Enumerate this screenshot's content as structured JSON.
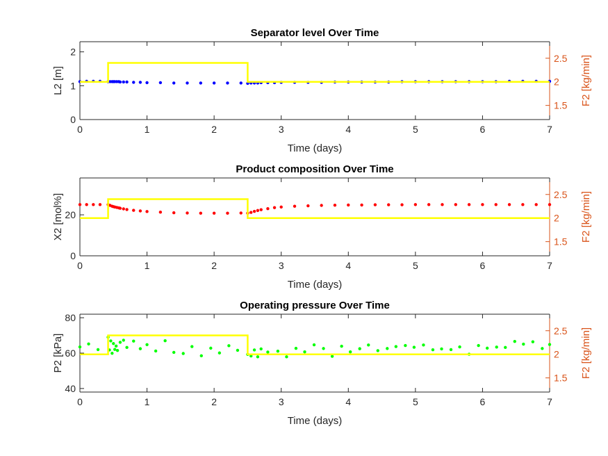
{
  "chart_data": [
    {
      "type": "scatter",
      "title": "Separator level Over Time",
      "xlabel": "Time (days)",
      "ylabel": "L2 [m]",
      "ylabel_right": "F2 [kg/min]",
      "xlim": [
        0,
        7
      ],
      "ylim": [
        0,
        2.3
      ],
      "ylim_right": [
        1.2,
        2.85
      ],
      "xticks": [
        "0",
        "1",
        "2",
        "3",
        "4",
        "5",
        "6",
        "7"
      ],
      "yticks": [
        "0",
        "1",
        "2"
      ],
      "yticks_right": [
        "1.5",
        "2",
        "2.5"
      ],
      "colors": {
        "marker": "#0000FF",
        "step": "#FFFF00",
        "right_axis": "#D95319"
      },
      "series": [
        {
          "axis": "left",
          "style": "dots",
          "x": [
            0.0,
            0.1,
            0.2,
            0.3,
            0.42,
            0.45,
            0.48,
            0.5,
            0.52,
            0.55,
            0.58,
            0.6,
            0.65,
            0.7,
            0.8,
            0.9,
            1.0,
            1.2,
            1.4,
            1.6,
            1.8,
            2.0,
            2.2,
            2.4,
            2.5,
            2.55,
            2.6,
            2.65,
            2.7,
            2.8,
            2.9,
            3.0,
            3.2,
            3.4,
            3.6,
            3.8,
            4.0,
            4.2,
            4.4,
            4.6,
            4.8,
            5.0,
            5.2,
            5.4,
            5.6,
            5.8,
            6.0,
            6.2,
            6.4,
            6.6,
            6.8,
            7.0
          ],
          "values": [
            1.12,
            1.13,
            1.13,
            1.13,
            1.12,
            1.12,
            1.12,
            1.12,
            1.12,
            1.12,
            1.12,
            1.11,
            1.11,
            1.11,
            1.1,
            1.1,
            1.09,
            1.09,
            1.08,
            1.08,
            1.08,
            1.08,
            1.08,
            1.08,
            1.07,
            1.08,
            1.08,
            1.08,
            1.09,
            1.09,
            1.09,
            1.1,
            1.1,
            1.1,
            1.1,
            1.11,
            1.11,
            1.11,
            1.11,
            1.11,
            1.12,
            1.12,
            1.12,
            1.12,
            1.12,
            1.12,
            1.12,
            1.12,
            1.13,
            1.13,
            1.13,
            1.13
          ]
        },
        {
          "axis": "right",
          "style": "step",
          "x": [
            0,
            0.42,
            0.42,
            2.5,
            2.5,
            7
          ],
          "values": [
            2.0,
            2.0,
            2.4,
            2.4,
            2.0,
            2.0
          ]
        }
      ]
    },
    {
      "type": "scatter",
      "title": "Product composition Over Time",
      "xlabel": "Time (days)",
      "ylabel": "X2 [mol%]",
      "ylabel_right": "F2 [kg/min]",
      "xlim": [
        0,
        7
      ],
      "ylim": [
        0,
        38
      ],
      "ylim_right": [
        1.2,
        2.85
      ],
      "xticks": [
        "0",
        "1",
        "2",
        "3",
        "4",
        "5",
        "6",
        "7"
      ],
      "yticks": [
        "0",
        "20"
      ],
      "yticks_right": [
        "1.5",
        "2",
        "2.5"
      ],
      "colors": {
        "marker": "#FF0000",
        "step": "#FFFF00",
        "right_axis": "#D95319"
      },
      "series": [
        {
          "axis": "left",
          "style": "dots",
          "x": [
            0.0,
            0.1,
            0.2,
            0.3,
            0.42,
            0.45,
            0.48,
            0.5,
            0.52,
            0.55,
            0.58,
            0.6,
            0.65,
            0.7,
            0.8,
            0.9,
            1.0,
            1.2,
            1.4,
            1.6,
            1.8,
            2.0,
            2.2,
            2.4,
            2.5,
            2.55,
            2.6,
            2.65,
            2.7,
            2.8,
            2.9,
            3.0,
            3.2,
            3.4,
            3.6,
            3.8,
            4.0,
            4.2,
            4.4,
            4.6,
            4.8,
            5.0,
            5.2,
            5.4,
            5.6,
            5.8,
            6.0,
            6.2,
            6.4,
            6.6,
            6.8,
            7.0
          ],
          "values": [
            25.0,
            25.0,
            25.0,
            25.0,
            25.0,
            24.6,
            24.2,
            24.0,
            23.8,
            23.6,
            23.4,
            23.2,
            22.9,
            22.6,
            22.2,
            21.9,
            21.6,
            21.3,
            21.0,
            20.9,
            20.8,
            20.8,
            20.8,
            20.9,
            20.8,
            21.2,
            21.7,
            22.1,
            22.5,
            23.0,
            23.5,
            23.8,
            24.2,
            24.4,
            24.6,
            24.7,
            24.8,
            24.8,
            24.9,
            24.9,
            24.9,
            25.0,
            25.0,
            25.0,
            25.0,
            25.0,
            25.0,
            25.0,
            25.0,
            25.0,
            25.0,
            25.0
          ]
        },
        {
          "axis": "right",
          "style": "step",
          "x": [
            0,
            0.42,
            0.42,
            2.5,
            2.5,
            7
          ],
          "values": [
            2.0,
            2.0,
            2.4,
            2.4,
            2.0,
            2.0
          ]
        }
      ]
    },
    {
      "type": "scatter",
      "title": "Operating pressure Over Time",
      "xlabel": "Time (days)",
      "ylabel": "P2 [kPa]",
      "ylabel_right": "F2 [kg/min]",
      "xlim": [
        0,
        7
      ],
      "ylim": [
        38,
        82
      ],
      "ylim_right": [
        1.2,
        2.85
      ],
      "xticks": [
        "0",
        "1",
        "2",
        "3",
        "4",
        "5",
        "6",
        "7"
      ],
      "yticks": [
        "40",
        "60",
        "80"
      ],
      "yticks_right": [
        "1.5",
        "2",
        "2.5"
      ],
      "colors": {
        "marker": "#00FF00",
        "step": "#FFFF00",
        "right_axis": "#D95319"
      },
      "series": [
        {
          "axis": "left",
          "style": "dots",
          "x": [
            0.0,
            0.13,
            0.27,
            0.42,
            0.44,
            0.46,
            0.48,
            0.5,
            0.52,
            0.54,
            0.56,
            0.6,
            0.65,
            0.7,
            0.8,
            0.9,
            1.0,
            1.13,
            1.27,
            1.4,
            1.54,
            1.67,
            1.81,
            1.95,
            2.08,
            2.22,
            2.35,
            2.5,
            2.55,
            2.6,
            2.65,
            2.7,
            2.8,
            2.95,
            3.08,
            3.22,
            3.35,
            3.49,
            3.63,
            3.76,
            3.9,
            4.03,
            4.17,
            4.3,
            4.44,
            4.58,
            4.71,
            4.85,
            4.98,
            5.12,
            5.26,
            5.39,
            5.53,
            5.66,
            5.8,
            5.94,
            6.07,
            6.21,
            6.34,
            6.48,
            6.61,
            6.75,
            6.89,
            7.0
          ],
          "values": [
            63.5,
            65.2,
            62.0,
            69.0,
            61.8,
            66.9,
            59.9,
            65.4,
            62.1,
            64.0,
            61.5,
            66.1,
            67.3,
            63.2,
            66.8,
            62.5,
            64.8,
            61.2,
            67.0,
            60.4,
            59.8,
            63.7,
            58.5,
            62.8,
            60.1,
            64.2,
            61.6,
            59.3,
            58.4,
            61.8,
            57.9,
            62.4,
            60.6,
            61.1,
            57.9,
            62.7,
            60.7,
            64.7,
            62.6,
            58.2,
            63.9,
            60.7,
            62.5,
            64.6,
            61.4,
            62.6,
            63.7,
            64.3,
            63.3,
            64.6,
            61.9,
            62.4,
            62.0,
            63.5,
            59.4,
            64.3,
            62.8,
            63.4,
            63.2,
            66.6,
            65.1,
            66.4,
            62.6,
            64.9
          ]
        },
        {
          "axis": "right",
          "style": "step",
          "x": [
            0,
            0.42,
            0.42,
            2.5,
            2.5,
            7
          ],
          "values": [
            2.0,
            2.0,
            2.4,
            2.4,
            2.0,
            2.0
          ]
        }
      ]
    }
  ]
}
